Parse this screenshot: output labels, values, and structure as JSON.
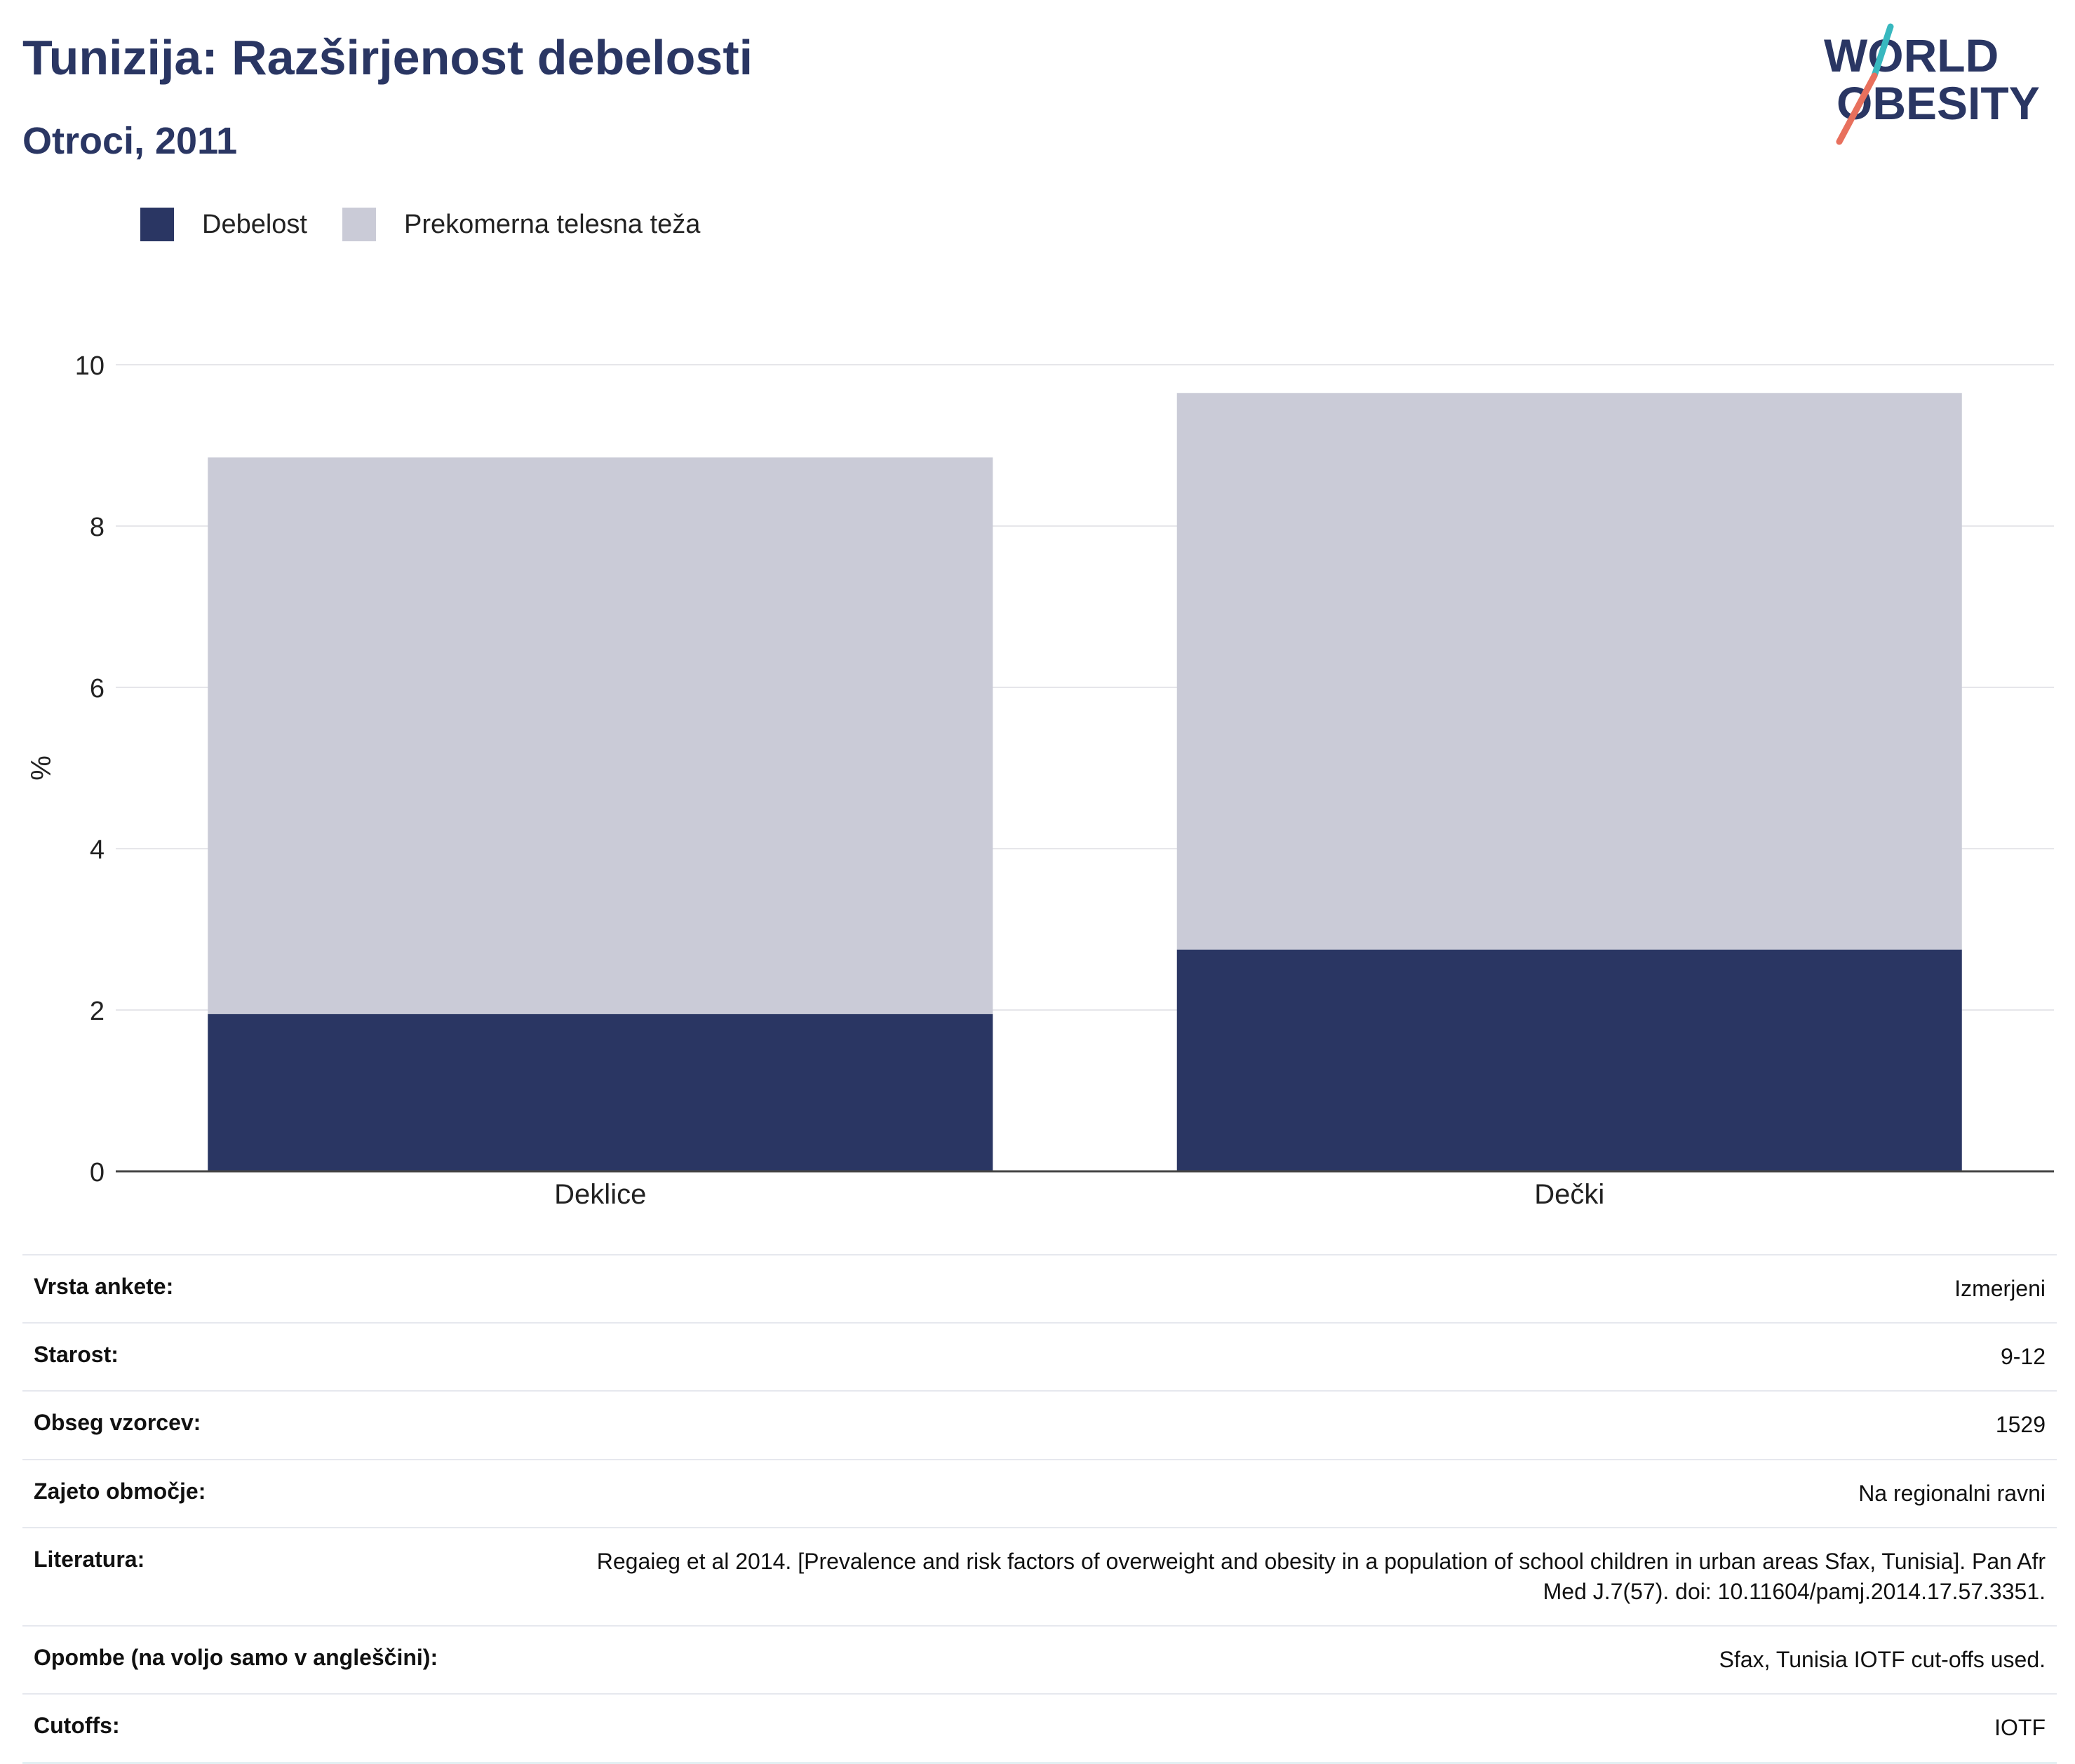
{
  "header": {
    "title": "Tunizija: Razširjenost debelosti",
    "subtitle": "Otroci, 2011"
  },
  "logo": {
    "line1": "WORLD",
    "line2": "OBESITY"
  },
  "legend": [
    {
      "label": "Debelost",
      "color": "#2a3663"
    },
    {
      "label": "Prekomerna telesna teža",
      "color": "#cacbd7"
    }
  ],
  "chart_data": {
    "type": "bar",
    "stacked": true,
    "categories": [
      "Deklice",
      "Dečki"
    ],
    "series": [
      {
        "name": "Debelost",
        "values": [
          1.95,
          2.75
        ],
        "color": "#2a3663"
      },
      {
        "name": "Prekomerna telesna teža",
        "values": [
          6.9,
          6.9
        ],
        "color": "#cacbd7"
      }
    ],
    "ylabel": "%",
    "ylim": [
      0,
      10
    ],
    "yticks": [
      0,
      2,
      4,
      6,
      8,
      10
    ],
    "grid": true,
    "legend_position": "top-left"
  },
  "meta": [
    {
      "label": "Vrsta ankete:",
      "value": "Izmerjeni"
    },
    {
      "label": "Starost:",
      "value": "9-12"
    },
    {
      "label": "Obseg vzorcev:",
      "value": "1529"
    },
    {
      "label": "Zajeto območje:",
      "value": "Na regionalni ravni"
    },
    {
      "label": "Literatura:",
      "value": "Regaieg et al 2014. [Prevalence and risk factors of overweight and obesity in a population of school children in urban areas Sfax, Tunisia]. Pan Afr Med J.7(57). doi: 10.11604/pamj.2014.17.57.3351."
    },
    {
      "label": "Opombe (na voljo samo v angleščini):",
      "value": "Sfax, Tunisia IOTF cut-offs used."
    },
    {
      "label": "Cutoffs:",
      "value": "IOTF"
    }
  ]
}
